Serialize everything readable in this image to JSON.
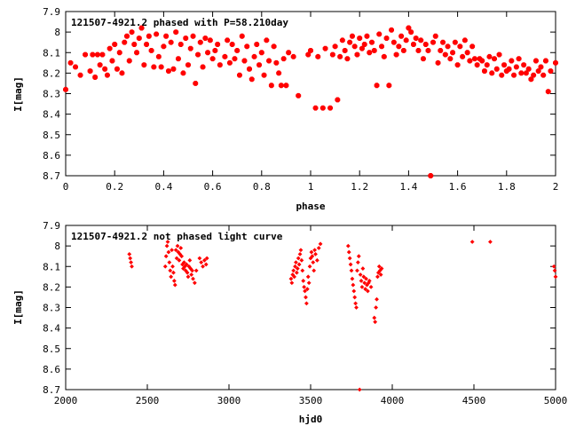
{
  "chart_data": [
    {
      "type": "scatter",
      "title": "121507-4921.2 phased with P=58.210day",
      "xlabel": "phase",
      "ylabel": "I[mag]",
      "xlim": [
        0,
        2
      ],
      "ylim": [
        7.9,
        8.7
      ],
      "y_inverted": true,
      "marker": "star",
      "color": "#ff0000",
      "xticks": [
        "0",
        "0.2",
        "0.4",
        "0.6",
        "0.8",
        "1",
        "1.2",
        "1.4",
        "1.6",
        "1.8",
        "2"
      ],
      "yticks": [
        "7.9",
        "8",
        "8.1",
        "8.2",
        "8.3",
        "8.4",
        "8.5",
        "8.6",
        "8.7"
      ],
      "points": [
        [
          0.0,
          8.28
        ],
        [
          0.02,
          8.15
        ],
        [
          0.04,
          8.17
        ],
        [
          0.06,
          8.21
        ],
        [
          0.08,
          8.11
        ],
        [
          0.1,
          8.19
        ],
        [
          0.11,
          8.11
        ],
        [
          0.12,
          8.22
        ],
        [
          0.13,
          8.11
        ],
        [
          0.14,
          8.16
        ],
        [
          0.15,
          8.11
        ],
        [
          0.16,
          8.18
        ],
        [
          0.17,
          8.21
        ],
        [
          0.18,
          8.08
        ],
        [
          0.19,
          8.14
        ],
        [
          0.2,
          8.06
        ],
        [
          0.21,
          8.18
        ],
        [
          0.22,
          8.1
        ],
        [
          0.23,
          8.2
        ],
        [
          0.24,
          8.05
        ],
        [
          0.25,
          8.02
        ],
        [
          0.26,
          8.14
        ],
        [
          0.27,
          8.0
        ],
        [
          0.28,
          8.06
        ],
        [
          0.29,
          8.1
        ],
        [
          0.3,
          8.03
        ],
        [
          0.31,
          7.98
        ],
        [
          0.32,
          8.16
        ],
        [
          0.33,
          8.06
        ],
        [
          0.34,
          8.02
        ],
        [
          0.35,
          8.09
        ],
        [
          0.36,
          8.17
        ],
        [
          0.37,
          8.01
        ],
        [
          0.38,
          8.12
        ],
        [
          0.39,
          8.17
        ],
        [
          0.4,
          8.07
        ],
        [
          0.41,
          8.02
        ],
        [
          0.42,
          8.19
        ],
        [
          0.43,
          8.05
        ],
        [
          0.44,
          8.18
        ],
        [
          0.45,
          8.0
        ],
        [
          0.46,
          8.13
        ],
        [
          0.47,
          8.06
        ],
        [
          0.48,
          8.2
        ],
        [
          0.49,
          8.03
        ],
        [
          0.5,
          8.16
        ],
        [
          0.51,
          8.08
        ],
        [
          0.52,
          8.02
        ],
        [
          0.53,
          8.25
        ],
        [
          0.54,
          8.11
        ],
        [
          0.55,
          8.05
        ],
        [
          0.56,
          8.17
        ],
        [
          0.57,
          8.03
        ],
        [
          0.58,
          8.1
        ],
        [
          0.59,
          8.04
        ],
        [
          0.6,
          8.13
        ],
        [
          0.61,
          8.09
        ],
        [
          0.62,
          8.06
        ],
        [
          0.63,
          8.16
        ],
        [
          0.65,
          8.12
        ],
        [
          0.66,
          8.04
        ],
        [
          0.67,
          8.15
        ],
        [
          0.68,
          8.06
        ],
        [
          0.69,
          8.13
        ],
        [
          0.7,
          8.09
        ],
        [
          0.71,
          8.21
        ],
        [
          0.72,
          8.02
        ],
        [
          0.73,
          8.14
        ],
        [
          0.74,
          8.07
        ],
        [
          0.75,
          8.18
        ],
        [
          0.76,
          8.23
        ],
        [
          0.77,
          8.12
        ],
        [
          0.78,
          8.06
        ],
        [
          0.79,
          8.16
        ],
        [
          0.8,
          8.1
        ],
        [
          0.81,
          8.21
        ],
        [
          0.82,
          8.04
        ],
        [
          0.83,
          8.14
        ],
        [
          0.84,
          8.26
        ],
        [
          0.85,
          8.07
        ],
        [
          0.86,
          8.15
        ],
        [
          0.87,
          8.2
        ],
        [
          0.88,
          8.26
        ],
        [
          0.89,
          8.13
        ],
        [
          0.9,
          8.26
        ],
        [
          0.91,
          8.1
        ],
        [
          0.93,
          8.12
        ],
        [
          0.95,
          8.31
        ],
        [
          0.99,
          8.11
        ],
        [
          1.0,
          8.09
        ],
        [
          1.02,
          8.37
        ],
        [
          1.03,
          8.12
        ],
        [
          1.05,
          8.37
        ],
        [
          1.06,
          8.08
        ],
        [
          1.08,
          8.37
        ],
        [
          1.09,
          8.11
        ],
        [
          1.1,
          8.07
        ],
        [
          1.11,
          8.33
        ],
        [
          1.12,
          8.12
        ],
        [
          1.13,
          8.04
        ],
        [
          1.14,
          8.09
        ],
        [
          1.15,
          8.13
        ],
        [
          1.16,
          8.05
        ],
        [
          1.17,
          8.02
        ],
        [
          1.18,
          8.07
        ],
        [
          1.19,
          8.11
        ],
        [
          1.2,
          8.03
        ],
        [
          1.21,
          8.08
        ],
        [
          1.22,
          8.06
        ],
        [
          1.23,
          8.02
        ],
        [
          1.24,
          8.1
        ],
        [
          1.25,
          8.05
        ],
        [
          1.26,
          8.09
        ],
        [
          1.27,
          8.26
        ],
        [
          1.28,
          8.01
        ],
        [
          1.29,
          8.07
        ],
        [
          1.3,
          8.12
        ],
        [
          1.31,
          8.03
        ],
        [
          1.32,
          8.26
        ],
        [
          1.33,
          7.99
        ],
        [
          1.34,
          8.05
        ],
        [
          1.35,
          8.11
        ],
        [
          1.36,
          8.07
        ],
        [
          1.37,
          8.02
        ],
        [
          1.38,
          8.09
        ],
        [
          1.39,
          8.04
        ],
        [
          1.4,
          7.98
        ],
        [
          1.41,
          8.0
        ],
        [
          1.42,
          8.06
        ],
        [
          1.43,
          8.03
        ],
        [
          1.44,
          8.09
        ],
        [
          1.45,
          8.04
        ],
        [
          1.46,
          8.13
        ],
        [
          1.47,
          8.06
        ],
        [
          1.48,
          8.09
        ],
        [
          1.49,
          8.7
        ],
        [
          1.5,
          8.05
        ],
        [
          1.51,
          8.02
        ],
        [
          1.52,
          8.15
        ],
        [
          1.53,
          8.09
        ],
        [
          1.54,
          8.05
        ],
        [
          1.55,
          8.11
        ],
        [
          1.56,
          8.07
        ],
        [
          1.57,
          8.13
        ],
        [
          1.58,
          8.1
        ],
        [
          1.59,
          8.05
        ],
        [
          1.6,
          8.16
        ],
        [
          1.61,
          8.07
        ],
        [
          1.62,
          8.12
        ],
        [
          1.63,
          8.04
        ],
        [
          1.64,
          8.1
        ],
        [
          1.65,
          8.14
        ],
        [
          1.66,
          8.07
        ],
        [
          1.67,
          8.13
        ],
        [
          1.68,
          8.16
        ],
        [
          1.69,
          8.13
        ],
        [
          1.7,
          8.14
        ],
        [
          1.71,
          8.19
        ],
        [
          1.72,
          8.16
        ],
        [
          1.73,
          8.12
        ],
        [
          1.74,
          8.2
        ],
        [
          1.75,
          8.13
        ],
        [
          1.76,
          8.18
        ],
        [
          1.77,
          8.11
        ],
        [
          1.78,
          8.21
        ],
        [
          1.79,
          8.16
        ],
        [
          1.8,
          8.19
        ],
        [
          1.81,
          8.18
        ],
        [
          1.82,
          8.14
        ],
        [
          1.83,
          8.21
        ],
        [
          1.84,
          8.17
        ],
        [
          1.85,
          8.13
        ],
        [
          1.86,
          8.2
        ],
        [
          1.87,
          8.16
        ],
        [
          1.88,
          8.2
        ],
        [
          1.89,
          8.18
        ],
        [
          1.9,
          8.23
        ],
        [
          1.91,
          8.21
        ],
        [
          1.92,
          8.14
        ],
        [
          1.93,
          8.19
        ],
        [
          1.94,
          8.17
        ],
        [
          1.95,
          8.21
        ],
        [
          1.96,
          8.14
        ],
        [
          1.97,
          8.29
        ],
        [
          1.98,
          8.19
        ],
        [
          2.0,
          8.15
        ]
      ]
    },
    {
      "type": "scatter",
      "title": "121507-4921.2 not phased light curve",
      "xlabel": "hjd0",
      "ylabel": "I[mag]",
      "xlim": [
        2000,
        5000
      ],
      "ylim": [
        7.9,
        8.7
      ],
      "y_inverted": true,
      "marker": "diamond",
      "color": "#ff0000",
      "xticks": [
        "2000",
        "2500",
        "3000",
        "3500",
        "4000",
        "4500",
        "5000"
      ],
      "yticks": [
        "7.9",
        "8",
        "8.1",
        "8.2",
        "8.3",
        "8.4",
        "8.5",
        "8.6",
        "8.7"
      ],
      "points": [
        [
          2390,
          8.04
        ],
        [
          2395,
          8.06
        ],
        [
          2400,
          8.08
        ],
        [
          2405,
          8.1
        ],
        [
          2610,
          8.1
        ],
        [
          2615,
          8.05
        ],
        [
          2620,
          8.0
        ],
        [
          2625,
          7.98
        ],
        [
          2630,
          8.03
        ],
        [
          2635,
          8.08
        ],
        [
          2640,
          8.12
        ],
        [
          2645,
          8.15
        ],
        [
          2650,
          8.02
        ],
        [
          2655,
          8.1
        ],
        [
          2660,
          8.13
        ],
        [
          2665,
          8.17
        ],
        [
          2670,
          8.19
        ],
        [
          2675,
          8.02
        ],
        [
          2680,
          8.06
        ],
        [
          2685,
          8.0
        ],
        [
          2690,
          8.03
        ],
        [
          2695,
          8.07
        ],
        [
          2700,
          8.04
        ],
        [
          2705,
          8.01
        ],
        [
          2710,
          8.05
        ],
        [
          2715,
          8.09
        ],
        [
          2720,
          8.11
        ],
        [
          2725,
          8.08
        ],
        [
          2730,
          8.1
        ],
        [
          2735,
          8.12
        ],
        [
          2740,
          8.09
        ],
        [
          2745,
          8.13
        ],
        [
          2750,
          8.15
        ],
        [
          2755,
          8.1
        ],
        [
          2760,
          8.07
        ],
        [
          2765,
          8.11
        ],
        [
          2770,
          8.14
        ],
        [
          2775,
          8.12
        ],
        [
          2780,
          8.16
        ],
        [
          2790,
          8.18
        ],
        [
          2800,
          8.12
        ],
        [
          2820,
          8.06
        ],
        [
          2830,
          8.08
        ],
        [
          2840,
          8.1
        ],
        [
          2850,
          8.07
        ],
        [
          2860,
          8.09
        ],
        [
          2865,
          8.06
        ],
        [
          3380,
          8.16
        ],
        [
          3385,
          8.18
        ],
        [
          3390,
          8.14
        ],
        [
          3395,
          8.12
        ],
        [
          3400,
          8.15
        ],
        [
          3405,
          8.1
        ],
        [
          3410,
          8.08
        ],
        [
          3415,
          8.13
        ],
        [
          3420,
          8.11
        ],
        [
          3425,
          8.06
        ],
        [
          3430,
          8.09
        ],
        [
          3435,
          8.04
        ],
        [
          3440,
          8.02
        ],
        [
          3445,
          8.07
        ],
        [
          3450,
          8.12
        ],
        [
          3455,
          8.17
        ],
        [
          3460,
          8.2
        ],
        [
          3465,
          8.22
        ],
        [
          3470,
          8.25
        ],
        [
          3475,
          8.28
        ],
        [
          3480,
          8.21
        ],
        [
          3485,
          8.15
        ],
        [
          3490,
          8.18
        ],
        [
          3495,
          8.1
        ],
        [
          3500,
          8.06
        ],
        [
          3505,
          8.03
        ],
        [
          3510,
          8.05
        ],
        [
          3515,
          8.08
        ],
        [
          3520,
          8.12
        ],
        [
          3525,
          8.02
        ],
        [
          3530,
          8.04
        ],
        [
          3540,
          8.07
        ],
        [
          3550,
          8.01
        ],
        [
          3560,
          7.99
        ],
        [
          3730,
          8.0
        ],
        [
          3735,
          8.03
        ],
        [
          3740,
          8.06
        ],
        [
          3745,
          8.09
        ],
        [
          3750,
          8.12
        ],
        [
          3755,
          8.16
        ],
        [
          3760,
          8.19
        ],
        [
          3765,
          8.22
        ],
        [
          3770,
          8.25
        ],
        [
          3775,
          8.28
        ],
        [
          3780,
          8.3
        ],
        [
          3785,
          8.12
        ],
        [
          3790,
          8.08
        ],
        [
          3795,
          8.05
        ],
        [
          3800,
          8.7
        ],
        [
          3805,
          8.14
        ],
        [
          3810,
          8.17
        ],
        [
          3815,
          8.2
        ],
        [
          3820,
          8.11
        ],
        [
          3825,
          8.15
        ],
        [
          3830,
          8.18
        ],
        [
          3835,
          8.21
        ],
        [
          3840,
          8.16
        ],
        [
          3845,
          8.19
        ],
        [
          3850,
          8.22
        ],
        [
          3855,
          8.18
        ],
        [
          3860,
          8.17
        ],
        [
          3870,
          8.2
        ],
        [
          3890,
          8.35
        ],
        [
          3895,
          8.37
        ],
        [
          3900,
          8.3
        ],
        [
          3905,
          8.26
        ],
        [
          3910,
          8.15
        ],
        [
          3915,
          8.13
        ],
        [
          3920,
          8.1
        ],
        [
          3925,
          8.12
        ],
        [
          3930,
          8.14
        ],
        [
          3935,
          8.11
        ],
        [
          4490,
          7.98
        ],
        [
          4600,
          7.98
        ],
        [
          4990,
          8.1
        ],
        [
          4995,
          8.12
        ],
        [
          5000,
          8.15
        ]
      ]
    }
  ]
}
